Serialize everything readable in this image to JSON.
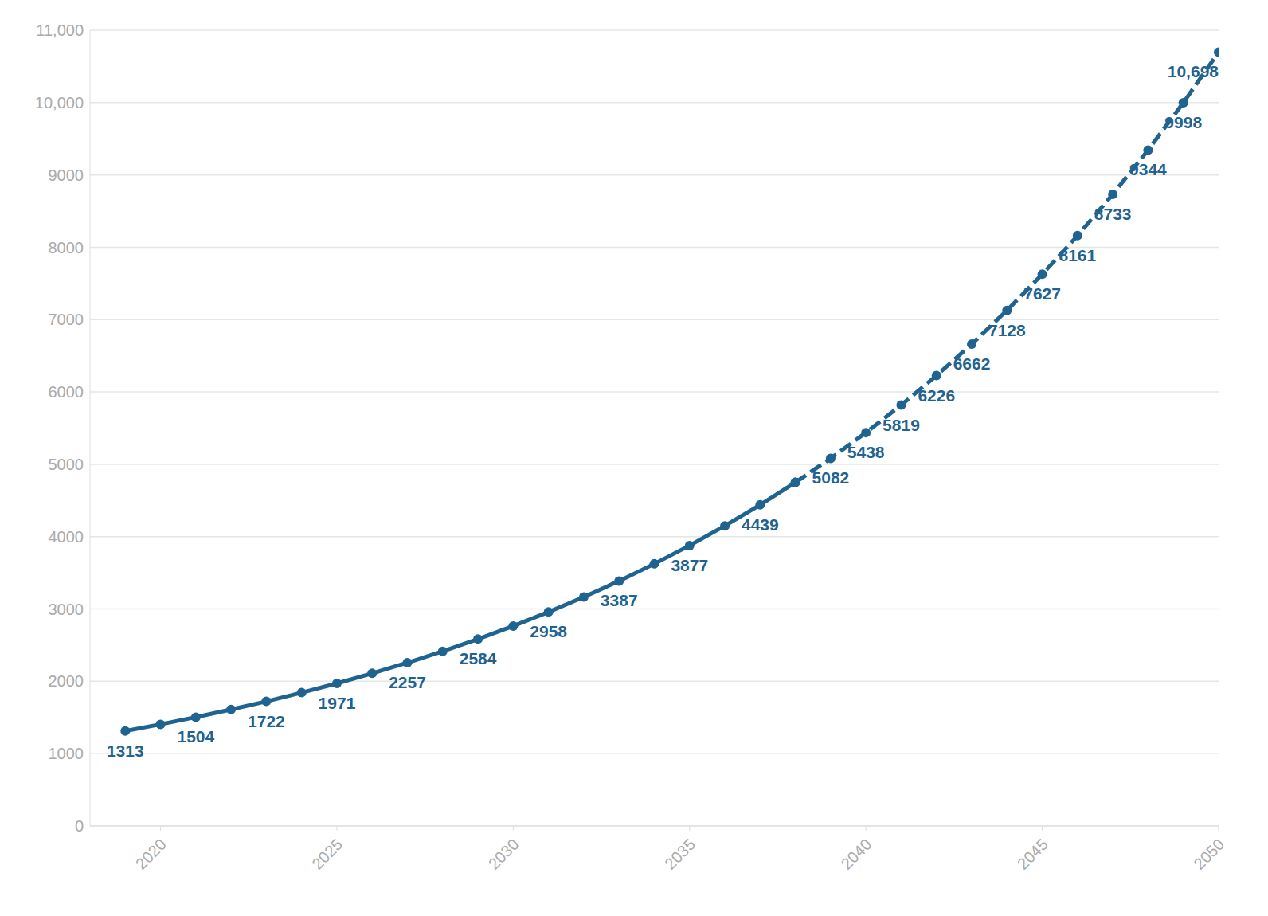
{
  "chart_data": {
    "type": "line",
    "x": [
      2019,
      2020,
      2021,
      2022,
      2023,
      2024,
      2025,
      2026,
      2027,
      2028,
      2029,
      2030,
      2031,
      2032,
      2033,
      2034,
      2035,
      2036,
      2037,
      2038,
      2039,
      2040,
      2041,
      2042,
      2043,
      2044,
      2045,
      2046,
      2047,
      2048,
      2049,
      2050
    ],
    "series": [
      {
        "color": "#1f6391",
        "marker": "circle",
        "line_style": "solid",
        "values": [
          1313,
          1405,
          1504,
          1610,
          1722,
          1843,
          1971,
          2110,
          2257,
          2415,
          2584,
          2765,
          2958,
          3166,
          3387,
          3624,
          3877,
          4149,
          4439,
          4750,
          null,
          null,
          null,
          null,
          null,
          null,
          null,
          null,
          null,
          null,
          null,
          null
        ],
        "value_labels": [
          "1313",
          null,
          "1504",
          null,
          "1722",
          null,
          "1971",
          null,
          "2257",
          null,
          "2584",
          null,
          "2958",
          null,
          "3387",
          null,
          "3877",
          null,
          "4439",
          null,
          null,
          null,
          null,
          null,
          null,
          null,
          null,
          null,
          null,
          null,
          null,
          null
        ]
      },
      {
        "color": "#1f6391",
        "marker": "circle",
        "line_style": "dashed",
        "values": [
          null,
          null,
          null,
          null,
          null,
          null,
          null,
          null,
          null,
          null,
          null,
          null,
          null,
          null,
          null,
          null,
          null,
          null,
          null,
          4750,
          5082,
          5438,
          5819,
          6226,
          6662,
          7128,
          7627,
          8161,
          8733,
          9344,
          9998,
          10698
        ],
        "value_labels": [
          null,
          null,
          null,
          null,
          null,
          null,
          null,
          null,
          null,
          null,
          null,
          null,
          null,
          null,
          null,
          null,
          null,
          null,
          null,
          null,
          "5082",
          "5438",
          "5819",
          "6226",
          "6662",
          "7128",
          "7627",
          "8161",
          "8733",
          "9344",
          "9998",
          "10,698"
        ]
      }
    ],
    "data_labels": true,
    "xlim": [
      2018,
      2050
    ],
    "xticks": [
      2020,
      2025,
      2030,
      2035,
      2040,
      2045,
      2050
    ],
    "ylim": [
      0,
      11000
    ],
    "yticks": [
      0,
      1000,
      2000,
      3000,
      4000,
      5000,
      6000,
      7000,
      8000,
      9000,
      {
        "value": 10000,
        "label": "10,000"
      },
      {
        "value": 11000,
        "label": "11,000"
      }
    ],
    "grid": true
  }
}
